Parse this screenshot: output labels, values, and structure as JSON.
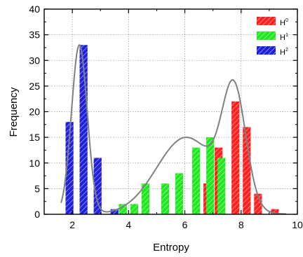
{
  "chart_data": {
    "type": "bar",
    "xlabel": "Entropy",
    "ylabel": "Frequency",
    "xlim": [
      1,
      10
    ],
    "ylim": [
      0,
      40
    ],
    "x_ticks": [
      2,
      4,
      6,
      8,
      10
    ],
    "y_ticks": [
      0,
      5,
      10,
      15,
      20,
      25,
      30,
      35,
      40
    ],
    "grid": true,
    "legend_position": "top-right",
    "bar_hatch": "diagonal",
    "series": [
      {
        "name": "H",
        "superscript": "0",
        "color": "#ff1f1f",
        "x": [
          6.8,
          7.2,
          7.8,
          8.2,
          8.6,
          9.2
        ],
        "values": [
          6,
          13,
          22,
          17,
          4,
          1
        ]
      },
      {
        "name": "H",
        "superscript": "1",
        "color": "#1fe81f",
        "x": [
          3.8,
          4.2,
          4.6,
          5.3,
          5.8,
          6.4,
          6.9,
          7.3
        ],
        "values": [
          2,
          2,
          6,
          6,
          8,
          13,
          15,
          11
        ]
      },
      {
        "name": "H",
        "superscript": "2",
        "color": "#1f1fe0",
        "x": [
          1.9,
          2.4,
          2.9,
          3.5
        ],
        "values": [
          18,
          33,
          11,
          1
        ]
      }
    ],
    "fit_curves": [
      {
        "mean": 2.25,
        "sd": 0.28,
        "amplitude": 33
      },
      {
        "mean": 6.05,
        "sd": 1.05,
        "amplitude": 15
      },
      {
        "mean": 7.75,
        "sd": 0.42,
        "amplitude": 22
      }
    ],
    "fit_color": "#808080"
  }
}
